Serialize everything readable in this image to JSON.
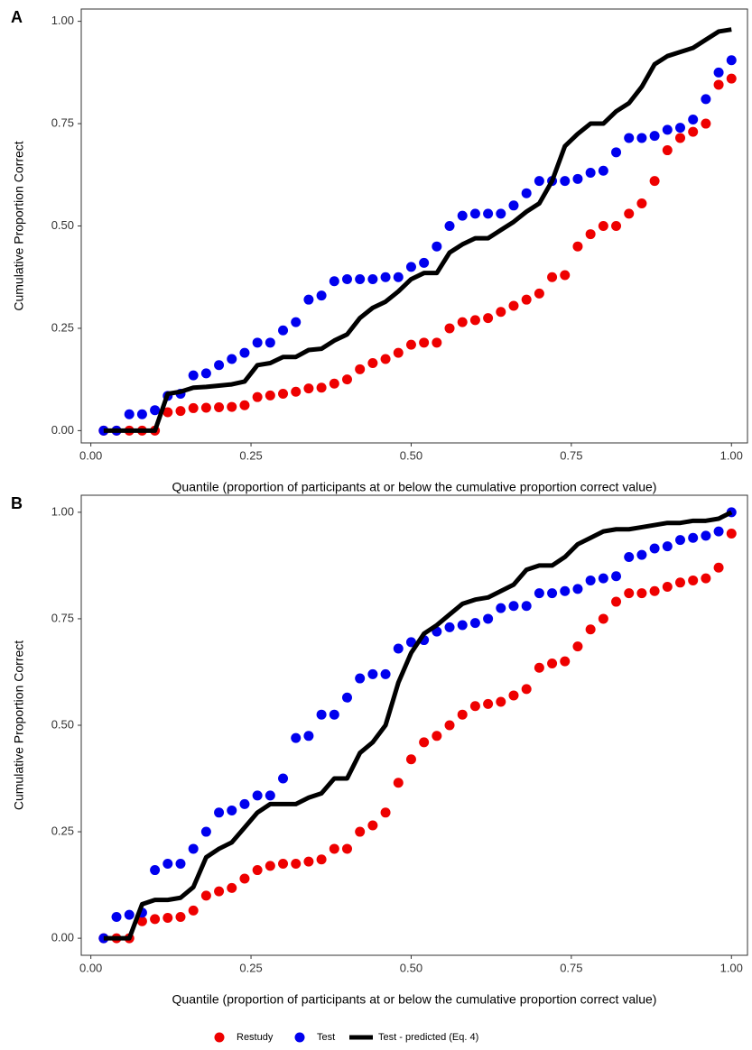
{
  "chart_data": [
    {
      "type": "line",
      "panel_label": "A",
      "x_label": "Quantile (proportion of participants at or below the cumulative proportion correct value)",
      "y_label": "Cumulative Proportion Correct",
      "x": [
        0.02,
        0.04,
        0.06,
        0.08,
        0.1,
        0.12,
        0.14,
        0.16,
        0.18,
        0.2,
        0.22,
        0.24,
        0.26,
        0.28,
        0.3,
        0.32,
        0.34,
        0.36,
        0.38,
        0.4,
        0.42,
        0.44,
        0.46,
        0.48,
        0.5,
        0.52,
        0.54,
        0.56,
        0.58,
        0.6,
        0.62,
        0.64,
        0.66,
        0.68,
        0.7,
        0.72,
        0.74,
        0.76,
        0.78,
        0.8,
        0.82,
        0.84,
        0.86,
        0.88,
        0.9,
        0.92,
        0.94,
        0.96,
        0.98,
        1.0
      ],
      "series": [
        {
          "name": "Restudy",
          "color": "#ee0000",
          "style": "points",
          "values": [
            0,
            0,
            0,
            0,
            0,
            0.045,
            0.048,
            0.055,
            0.056,
            0.057,
            0.058,
            0.062,
            0.082,
            0.086,
            0.09,
            0.095,
            0.103,
            0.105,
            0.115,
            0.125,
            0.15,
            0.165,
            0.175,
            0.19,
            0.21,
            0.215,
            0.215,
            0.25,
            0.265,
            0.27,
            0.275,
            0.29,
            0.305,
            0.32,
            0.335,
            0.375,
            0.38,
            0.45,
            0.48,
            0.5,
            0.5,
            0.53,
            0.555,
            0.61,
            0.685,
            0.715,
            0.73,
            0.75,
            0.845,
            0.86
          ]
        },
        {
          "name": "Test",
          "color": "#0000ee",
          "style": "points",
          "values": [
            0,
            0,
            0.04,
            0.04,
            0.05,
            0.085,
            0.09,
            0.135,
            0.14,
            0.16,
            0.175,
            0.19,
            0.215,
            0.215,
            0.245,
            0.265,
            0.32,
            0.33,
            0.365,
            0.37,
            0.37,
            0.37,
            0.375,
            0.375,
            0.4,
            0.41,
            0.45,
            0.5,
            0.525,
            0.53,
            0.53,
            0.53,
            0.55,
            0.58,
            0.61,
            0.61,
            0.61,
            0.615,
            0.63,
            0.635,
            0.68,
            0.715,
            0.715,
            0.72,
            0.735,
            0.74,
            0.76,
            0.81,
            0.875,
            0.905
          ]
        },
        {
          "name": "Test - predicted (Eq. 4)",
          "color": "#000000",
          "style": "line",
          "values": [
            0,
            0,
            0,
            0,
            0,
            0.09,
            0.095,
            0.105,
            0.107,
            0.11,
            0.113,
            0.12,
            0.16,
            0.165,
            0.18,
            0.18,
            0.197,
            0.2,
            0.22,
            0.235,
            0.275,
            0.3,
            0.315,
            0.34,
            0.37,
            0.385,
            0.385,
            0.435,
            0.455,
            0.47,
            0.47,
            0.49,
            0.51,
            0.535,
            0.555,
            0.61,
            0.695,
            0.725,
            0.75,
            0.75,
            0.78,
            0.8,
            0.84,
            0.895,
            0.915,
            0.925,
            0.935,
            0.955,
            0.975,
            0.98
          ]
        }
      ],
      "xlim": [
        -0.015,
        1.025
      ],
      "ylim": [
        -0.03,
        1.03
      ],
      "xticks": [
        {
          "value": 0,
          "label": "0.00"
        },
        {
          "value": 0.25,
          "label": "0.25"
        },
        {
          "value": 0.5,
          "label": "0.50"
        },
        {
          "value": 0.75,
          "label": "0.75"
        },
        {
          "value": 1,
          "label": "1.00"
        }
      ],
      "yticks": [
        {
          "value": 0,
          "label": "0.00"
        },
        {
          "value": 0.25,
          "label": "0.25"
        },
        {
          "value": 0.5,
          "label": "0.50"
        },
        {
          "value": 0.75,
          "label": "0.75"
        },
        {
          "value": 1,
          "label": "1.00"
        }
      ],
      "legend": "bottom"
    },
    {
      "type": "line",
      "panel_label": "B",
      "x_label": "Quantile (proportion of participants at or below the cumulative proportion correct value)",
      "y_label": "Cumulative Proportion Correct",
      "x": [
        0.02,
        0.04,
        0.06,
        0.08,
        0.1,
        0.12,
        0.14,
        0.16,
        0.18,
        0.2,
        0.22,
        0.24,
        0.26,
        0.28,
        0.3,
        0.32,
        0.34,
        0.36,
        0.38,
        0.4,
        0.42,
        0.44,
        0.46,
        0.48,
        0.5,
        0.52,
        0.54,
        0.56,
        0.58,
        0.6,
        0.62,
        0.64,
        0.66,
        0.68,
        0.7,
        0.72,
        0.74,
        0.76,
        0.78,
        0.8,
        0.82,
        0.84,
        0.86,
        0.88,
        0.9,
        0.92,
        0.94,
        0.96,
        0.98,
        1.0
      ],
      "series": [
        {
          "color": "#ee0000",
          "style": "points",
          "values": [
            0,
            0,
            0,
            0.04,
            0.045,
            0.048,
            0.05,
            0.065,
            0.1,
            0.11,
            0.118,
            0.14,
            0.16,
            0.17,
            0.175,
            0.175,
            0.18,
            0.185,
            0.21,
            0.21,
            0.25,
            0.265,
            0.295,
            0.365,
            0.42,
            0.46,
            0.475,
            0.5,
            0.525,
            0.545,
            0.55,
            0.555,
            0.57,
            0.585,
            0.635,
            0.645,
            0.65,
            0.685,
            0.725,
            0.75,
            0.79,
            0.81,
            0.81,
            0.815,
            0.825,
            0.835,
            0.84,
            0.845,
            0.87,
            0.95
          ]
        },
        {
          "color": "#0000ee",
          "style": "points",
          "values": [
            0,
            0.05,
            0.055,
            0.06,
            0.16,
            0.175,
            0.175,
            0.21,
            0.25,
            0.295,
            0.3,
            0.315,
            0.335,
            0.335,
            0.375,
            0.47,
            0.475,
            0.525,
            0.525,
            0.565,
            0.61,
            0.62,
            0.62,
            0.68,
            0.695,
            0.7,
            0.72,
            0.73,
            0.735,
            0.74,
            0.75,
            0.775,
            0.78,
            0.78,
            0.81,
            0.81,
            0.815,
            0.82,
            0.84,
            0.845,
            0.85,
            0.895,
            0.9,
            0.915,
            0.92,
            0.935,
            0.94,
            0.945,
            0.955,
            1.0
          ]
        },
        {
          "color": "#000000",
          "style": "line",
          "values": [
            0,
            0,
            0,
            0.08,
            0.09,
            0.09,
            0.095,
            0.12,
            0.19,
            0.21,
            0.225,
            0.26,
            0.295,
            0.315,
            0.315,
            0.315,
            0.33,
            0.34,
            0.375,
            0.375,
            0.435,
            0.46,
            0.5,
            0.6,
            0.67,
            0.715,
            0.735,
            0.76,
            0.785,
            0.795,
            0.8,
            0.815,
            0.83,
            0.865,
            0.875,
            0.875,
            0.895,
            0.925,
            0.94,
            0.955,
            0.96,
            0.96,
            0.965,
            0.97,
            0.975,
            0.975,
            0.98,
            0.98,
            0.985,
            1.0
          ]
        }
      ],
      "xlim": [
        -0.015,
        1.025
      ],
      "ylim": [
        -0.04,
        1.04
      ],
      "xticks": [
        {
          "value": 0,
          "label": "0.00"
        },
        {
          "value": 0.25,
          "label": "0.25"
        },
        {
          "value": 0.5,
          "label": "0.50"
        },
        {
          "value": 0.75,
          "label": "0.75"
        },
        {
          "value": 1,
          "label": "1.00"
        }
      ],
      "yticks": [
        {
          "value": 0,
          "label": "0.00"
        },
        {
          "value": 0.25,
          "label": "0.25"
        },
        {
          "value": 0.5,
          "label": "0.50"
        },
        {
          "value": 0.75,
          "label": "0.75"
        },
        {
          "value": 1,
          "label": "1.00"
        }
      ]
    }
  ]
}
